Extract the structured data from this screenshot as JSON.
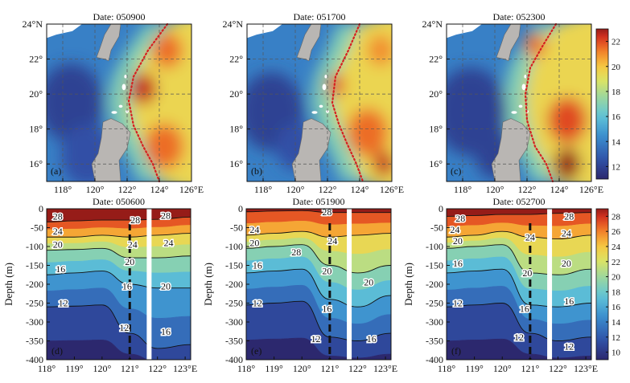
{
  "chart_data": [
    {
      "type": "heatmap",
      "panel": "(a)",
      "title": "Date: 050900",
      "x_ticks": [
        "118°",
        "120°",
        "122°",
        "124°",
        "126°E"
      ],
      "y_ticks": [
        "24°N",
        "22°",
        "20°",
        "18°",
        "16°"
      ],
      "xlim": [
        117,
        126
      ],
      "ylim": [
        15,
        24
      ],
      "grid": true,
      "front_line": [
        [
          124.5,
          24
        ],
        [
          123.3,
          22.5
        ],
        [
          122.4,
          21.0
        ],
        [
          122.1,
          19.6
        ],
        [
          122.4,
          18.2
        ],
        [
          123.0,
          17.0
        ],
        [
          123.6,
          16.0
        ],
        [
          124.0,
          15
        ]
      ],
      "warm_core": [
        [
          123.0,
          20.3,
          1.5,
          22.5
        ],
        [
          124.5,
          22.5,
          1.7,
          21.5
        ],
        [
          124.3,
          17.0,
          2.2,
          21.5
        ]
      ],
      "cold_core": [
        [
          118.5,
          19.5,
          2.5,
          12
        ],
        [
          119.5,
          16.5,
          2.0,
          12.5
        ]
      ]
    },
    {
      "type": "heatmap",
      "panel": "(b)",
      "title": "Date: 051700",
      "x_ticks": [
        "118°",
        "120°",
        "122°",
        "124°",
        "126°E"
      ],
      "y_ticks": [
        "24°N",
        "22°",
        "20°",
        "18°",
        "16°"
      ],
      "xlim": [
        117,
        126
      ],
      "ylim": [
        15,
        24
      ],
      "grid": true,
      "front_line": [
        [
          124.0,
          24
        ],
        [
          123.3,
          22.5
        ],
        [
          122.5,
          21.0
        ],
        [
          122.3,
          19.5
        ],
        [
          122.7,
          18.3
        ],
        [
          123.2,
          17.2
        ],
        [
          123.8,
          16.0
        ],
        [
          124.2,
          15
        ]
      ],
      "warm_core": [
        [
          122.5,
          20.5,
          1.0,
          22
        ],
        [
          125.3,
          22.5,
          1.5,
          21
        ],
        [
          124.5,
          17.8,
          2.3,
          21.5
        ],
        [
          125.5,
          16.0,
          1.2,
          22.5
        ]
      ],
      "cold_core": [
        [
          118.5,
          19.0,
          2.5,
          12
        ],
        [
          120.0,
          17.0,
          1.5,
          12.5
        ]
      ]
    },
    {
      "type": "heatmap",
      "panel": "(c)",
      "title": "Date: 052300",
      "x_ticks": [
        "118°",
        "120°",
        "122°",
        "124°",
        "126°E"
      ],
      "y_ticks": [
        "24°N",
        "22°",
        "20°",
        "18°",
        "16°"
      ],
      "xlim": [
        117,
        126
      ],
      "ylim": [
        15,
        24
      ],
      "grid": true,
      "front_line": [
        [
          123.8,
          24
        ],
        [
          123.0,
          22.8
        ],
        [
          122.2,
          21.5
        ],
        [
          121.9,
          20.0
        ],
        [
          122.0,
          18.5
        ],
        [
          122.5,
          17.0
        ],
        [
          123.2,
          16.0
        ],
        [
          123.6,
          15
        ]
      ],
      "warm_core": [
        [
          122.5,
          22.8,
          1.2,
          21.5
        ],
        [
          124.5,
          18.5,
          2.2,
          22
        ],
        [
          124.5,
          16.0,
          1.5,
          23
        ]
      ],
      "cold_core": [
        [
          118.5,
          19.0,
          2.8,
          12
        ],
        [
          120.0,
          16.5,
          1.5,
          12
        ]
      ]
    },
    {
      "type": "heatmap",
      "panel": "(d)",
      "title": "Date: 050600",
      "x_ticks": [
        "118°",
        "119°",
        "120°",
        "121°",
        "122°",
        "123°E"
      ],
      "y_ticks": [
        "0",
        "-50",
        "-100",
        "-150",
        "-200",
        "-250",
        "-300",
        "-350",
        "-400"
      ],
      "ylabel": "Depth (m)",
      "xlim": [
        118,
        123.2
      ],
      "ylim": [
        -400,
        0
      ],
      "isotherms": [
        28,
        24,
        20,
        16,
        12
      ],
      "isotherm_depths": [
        [
          -35,
          -32,
          -30,
          -30,
          -28,
          -22
        ],
        [
          -75,
          -75,
          -70,
          -75,
          -70,
          -65
        ],
        [
          -110,
          -108,
          -105,
          -130,
          -130,
          -125
        ],
        [
          -175,
          -170,
          -165,
          -200,
          -210,
          -210
        ],
        [
          -260,
          -258,
          -255,
          -330,
          -370,
          -360
        ]
      ],
      "contour_labels": [
        {
          "text": "28",
          "x": 118.4,
          "y": -20
        },
        {
          "text": "24",
          "x": 118.4,
          "y": -60
        },
        {
          "text": "20",
          "x": 118.4,
          "y": -95
        },
        {
          "text": "16",
          "x": 118.5,
          "y": -160
        },
        {
          "text": "12",
          "x": 118.6,
          "y": -250
        },
        {
          "text": "28",
          "x": 121.2,
          "y": -30
        },
        {
          "text": "24",
          "x": 121.1,
          "y": -95
        },
        {
          "text": "20",
          "x": 121.0,
          "y": -140
        },
        {
          "text": "16",
          "x": 120.9,
          "y": -205
        },
        {
          "text": "12",
          "x": 120.8,
          "y": -315
        },
        {
          "text": "28",
          "x": 122.3,
          "y": -18
        },
        {
          "text": "24",
          "x": 122.4,
          "y": -90
        },
        {
          "text": "20",
          "x": 122.3,
          "y": -205
        },
        {
          "text": "16",
          "x": 122.3,
          "y": -325
        }
      ],
      "dashed_line_x": 121.0,
      "white_bar_x": 121.7
    },
    {
      "type": "heatmap",
      "panel": "(e)",
      "title": "Date: 051900",
      "x_ticks": [
        "118°",
        "119°",
        "120°",
        "121°",
        "122°",
        "123°E"
      ],
      "y_ticks": [
        "0",
        "-50",
        "-100",
        "-150",
        "-200",
        "-250",
        "-300",
        "-350",
        "-400"
      ],
      "ylabel": "Depth (m)",
      "xlim": [
        118,
        123.2
      ],
      "ylim": [
        -400,
        0
      ],
      "isotherms": [
        28,
        24,
        20,
        16,
        12
      ],
      "isotherm_depths": [
        [
          -8,
          -6,
          -5,
          -10,
          -10,
          -10
        ],
        [
          -70,
          -65,
          -60,
          -75,
          -70,
          -65
        ],
        [
          -105,
          -100,
          -95,
          -150,
          -170,
          -150
        ],
        [
          -170,
          -165,
          -160,
          -240,
          -260,
          -230
        ],
        [
          -255,
          -250,
          -245,
          -340,
          -350,
          -330
        ]
      ],
      "contour_labels": [
        {
          "text": "28",
          "x": 120.9,
          "y": -8
        },
        {
          "text": "24",
          "x": 118.3,
          "y": -55
        },
        {
          "text": "20",
          "x": 118.3,
          "y": -90
        },
        {
          "text": "28",
          "x": 119.8,
          "y": -115
        },
        {
          "text": "16",
          "x": 118.4,
          "y": -150
        },
        {
          "text": "12",
          "x": 118.4,
          "y": -250
        },
        {
          "text": "24",
          "x": 121.1,
          "y": -85
        },
        {
          "text": "20",
          "x": 120.9,
          "y": -165
        },
        {
          "text": "16",
          "x": 120.9,
          "y": -265
        },
        {
          "text": "12",
          "x": 120.5,
          "y": -345
        },
        {
          "text": "20",
          "x": 122.4,
          "y": -195
        },
        {
          "text": "16",
          "x": 122.5,
          "y": -345
        }
      ],
      "dashed_line_x": 121.0,
      "white_bar_x": 121.7
    },
    {
      "type": "heatmap",
      "panel": "(f)",
      "title": "Date: 052700",
      "x_ticks": [
        "118°",
        "119°",
        "120°",
        "121°",
        "122°",
        "123°E"
      ],
      "y_ticks": [
        "0",
        "-50",
        "-100",
        "-150",
        "-200",
        "-250",
        "-300",
        "-350",
        "-400"
      ],
      "ylabel": "Depth (m)",
      "xlim": [
        118,
        123.2
      ],
      "ylim": [
        -400,
        0
      ],
      "isotherms": [
        28,
        24,
        20,
        16,
        12
      ],
      "isotherm_depths": [
        [
          -20,
          -18,
          -15,
          -15,
          -12,
          -10
        ],
        [
          -75,
          -70,
          -60,
          -75,
          -80,
          -70
        ],
        [
          -105,
          -100,
          -95,
          -170,
          -175,
          -160
        ],
        [
          -170,
          -165,
          -160,
          -255,
          -260,
          -250
        ],
        [
          -260,
          -255,
          -250,
          -330,
          -350,
          -340
        ]
      ],
      "contour_labels": [
        {
          "text": "28",
          "x": 118.5,
          "y": -25
        },
        {
          "text": "24",
          "x": 118.3,
          "y": -55
        },
        {
          "text": "20",
          "x": 118.4,
          "y": -85
        },
        {
          "text": "16",
          "x": 118.4,
          "y": -145
        },
        {
          "text": "12",
          "x": 118.4,
          "y": -250
        },
        {
          "text": "24",
          "x": 121.0,
          "y": -75
        },
        {
          "text": "20",
          "x": 120.9,
          "y": -170
        },
        {
          "text": "16",
          "x": 120.8,
          "y": -265
        },
        {
          "text": "12",
          "x": 120.6,
          "y": -340
        },
        {
          "text": "28",
          "x": 122.4,
          "y": -20
        },
        {
          "text": "24",
          "x": 122.3,
          "y": -65
        },
        {
          "text": "20",
          "x": 122.3,
          "y": -145
        },
        {
          "text": "16",
          "x": 122.4,
          "y": -245
        },
        {
          "text": "12",
          "x": 122.4,
          "y": -365
        }
      ],
      "dashed_line_x": 121.0,
      "white_bar_x": 121.7
    }
  ],
  "colorbars": [
    {
      "ticks": [
        "22",
        "20",
        "18",
        "16",
        "14",
        "12"
      ],
      "range": [
        11,
        23
      ]
    },
    {
      "ticks": [
        "28",
        "26",
        "24",
        "22",
        "20",
        "18",
        "16",
        "14",
        "12",
        "10"
      ],
      "range": [
        9,
        29
      ]
    }
  ],
  "colors": {
    "front_line": "#d62020",
    "land": "#b9b6b3",
    "isotherm": "#111111",
    "white_bar": "#ffffff",
    "dashed_line": "#111111"
  }
}
